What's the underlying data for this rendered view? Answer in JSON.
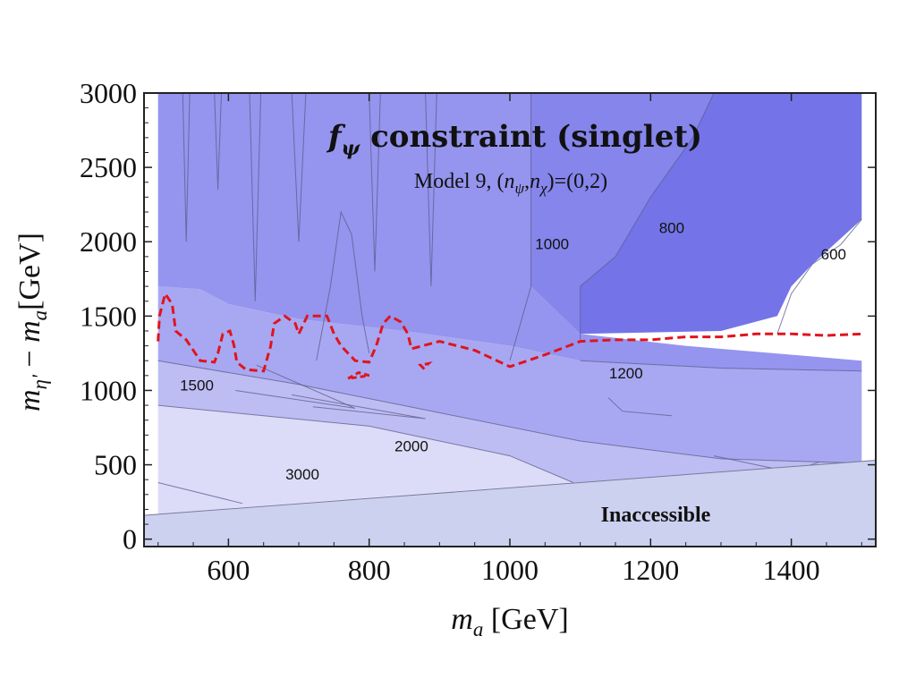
{
  "chart_data": {
    "type": "contour",
    "title": "f_ψ constraint (singlet)",
    "title_parts": {
      "main": "f",
      "sub": "ψ",
      "rest": " constraint (singlet)"
    },
    "subtitle": "Model 9, (n_ψ,n_χ)=(0,2)",
    "subtitle_parts": {
      "pre": "Model 9, (",
      "n1": "n",
      "s1": "ψ",
      "sep": ",",
      "n2": "n",
      "s2": "χ",
      "post": ")=(0,2)"
    },
    "xlabel": "m_a [GeV]",
    "xlabel_parts": {
      "m": "m",
      "sub": "a",
      "unit": " [GeV]"
    },
    "ylabel": "m_η' − m_a [GeV]",
    "ylabel_parts": {
      "m1": "m",
      "s1": "η'",
      "dash": " − ",
      "m2": "m",
      "s2": "a",
      "unit": "[GeV]"
    },
    "xlim": [
      480,
      1520
    ],
    "ylim": [
      -50,
      3000
    ],
    "x_ticks": [
      600,
      800,
      1000,
      1200,
      1400
    ],
    "y_ticks": [
      0,
      500,
      1000,
      1500,
      2000,
      2500,
      3000
    ],
    "x_tick_labels": [
      "600",
      "800",
      "1000",
      "1200",
      "1400"
    ],
    "y_tick_labels": [
      "0",
      "500",
      "1000",
      "1500",
      "2000",
      "2500",
      "3000"
    ],
    "contour_levels": [
      600,
      800,
      1000,
      1200,
      1500,
      2000,
      3000
    ],
    "contour_labels": [
      {
        "text": "600",
        "x": 1460,
        "y": 1880
      },
      {
        "text": "800",
        "x": 1230,
        "y": 2060
      },
      {
        "text": "1000",
        "x": 1060,
        "y": 1950
      },
      {
        "text": "1200",
        "x": 1165,
        "y": 1080
      },
      {
        "text": "1500",
        "x": 555,
        "y": 1000
      },
      {
        "text": "2000",
        "x": 860,
        "y": 590
      },
      {
        "text": "3000",
        "x": 705,
        "y": 400
      }
    ],
    "bands": [
      {
        "level": "3000+",
        "color": "#f4f4fd",
        "points": [
          [
            500,
            380
          ],
          [
            500,
            170
          ],
          [
            620,
            240
          ]
        ]
      },
      {
        "level": "2000-3000",
        "color": "#dcdcf8",
        "points": [
          [
            500,
            900
          ],
          [
            800,
            760
          ],
          [
            1000,
            560
          ],
          [
            1090,
            380
          ],
          [
            830,
            290
          ],
          [
            500,
            170
          ]
        ]
      },
      {
        "level": "1500-2000",
        "color": "#bdbdf3",
        "points": [
          [
            500,
            1200
          ],
          [
            700,
            1040
          ],
          [
            900,
            850
          ],
          [
            1100,
            660
          ],
          [
            1300,
            540
          ],
          [
            1500,
            510
          ],
          [
            1500,
            430
          ],
          [
            1090,
            380
          ],
          [
            1000,
            560
          ],
          [
            800,
            760
          ],
          [
            500,
            900
          ]
        ]
      },
      {
        "level": "1200-1500",
        "color": "#a8a8f2",
        "points": [
          [
            500,
            1700
          ],
          [
            560,
            1680
          ],
          [
            600,
            1580
          ],
          [
            700,
            1480
          ],
          [
            850,
            1400
          ],
          [
            1000,
            1300
          ],
          [
            1100,
            1200
          ],
          [
            1300,
            1150
          ],
          [
            1500,
            1130
          ],
          [
            1500,
            510
          ],
          [
            1300,
            540
          ],
          [
            1100,
            660
          ],
          [
            900,
            850
          ],
          [
            700,
            1040
          ],
          [
            500,
            1200
          ]
        ]
      },
      {
        "level": "1000-1200",
        "color": "#9595ef",
        "points": [
          [
            500,
            3000
          ],
          [
            1030,
            3000
          ],
          [
            1030,
            1700
          ],
          [
            1100,
            1380
          ],
          [
            1250,
            1300
          ],
          [
            1500,
            1200
          ],
          [
            1500,
            1130
          ],
          [
            1300,
            1150
          ],
          [
            1100,
            1200
          ],
          [
            1000,
            1300
          ],
          [
            850,
            1400
          ],
          [
            700,
            1480
          ],
          [
            600,
            1580
          ],
          [
            560,
            1680
          ],
          [
            500,
            1700
          ]
        ]
      },
      {
        "level": "800-1000",
        "color": "#8585ec",
        "points": [
          [
            1030,
            3000
          ],
          [
            1290,
            3000
          ],
          [
            1260,
            2700
          ],
          [
            1200,
            2300
          ],
          [
            1150,
            1900
          ],
          [
            1100,
            1700
          ],
          [
            1100,
            1380
          ],
          [
            1030,
            1700
          ]
        ]
      },
      {
        "level": "600-800",
        "color": "#7474e8",
        "points": [
          [
            1290,
            3000
          ],
          [
            1500,
            3000
          ],
          [
            1500,
            2150
          ],
          [
            1430,
            1850
          ],
          [
            1400,
            1700
          ],
          [
            1380,
            1500
          ],
          [
            1300,
            1400
          ],
          [
            1100,
            1380
          ],
          [
            1100,
            1700
          ],
          [
            1150,
            1900
          ],
          [
            1200,
            2300
          ],
          [
            1260,
            2700
          ]
        ]
      }
    ],
    "contour_lines": [
      {
        "level": 600,
        "points": [
          [
            1380,
            1380
          ],
          [
            1400,
            1650
          ],
          [
            1430,
            1850
          ],
          [
            1470,
            1980
          ],
          [
            1500,
            2150
          ]
        ]
      },
      {
        "level": 800,
        "points": [
          [
            1100,
            1340
          ],
          [
            1100,
            1700
          ],
          [
            1150,
            1900
          ],
          [
            1200,
            2300
          ],
          [
            1260,
            2700
          ],
          [
            1290,
            3000
          ]
        ]
      },
      {
        "level": 1000,
        "points": [
          [
            1030,
            3000
          ],
          [
            1030,
            1700
          ],
          [
            1000,
            1200
          ]
        ]
      },
      {
        "level": 1200,
        "points": [
          [
            1100,
            1200
          ],
          [
            1300,
            1150
          ],
          [
            1500,
            1130
          ]
        ]
      },
      {
        "level": 1500,
        "points": [
          [
            500,
            1200
          ],
          [
            700,
            1040
          ],
          [
            900,
            850
          ],
          [
            1100,
            660
          ],
          [
            1300,
            540
          ],
          [
            1500,
            510
          ]
        ]
      },
      {
        "level": 2000,
        "points": [
          [
            500,
            900
          ],
          [
            800,
            760
          ],
          [
            1000,
            560
          ],
          [
            1090,
            380
          ]
        ]
      },
      {
        "level": 3000,
        "points": [
          [
            500,
            380
          ],
          [
            620,
            240
          ]
        ]
      },
      {
        "level": "spike",
        "points": [
          [
            535,
            3000
          ],
          [
            540,
            2000
          ],
          [
            545,
            3000
          ]
        ]
      },
      {
        "level": "spike",
        "points": [
          [
            580,
            3000
          ],
          [
            585,
            2350
          ],
          [
            590,
            3000
          ]
        ]
      },
      {
        "level": "spike",
        "points": [
          [
            630,
            3000
          ],
          [
            638,
            1600
          ],
          [
            646,
            3000
          ]
        ]
      },
      {
        "level": "spike",
        "points": [
          [
            690,
            3000
          ],
          [
            700,
            2000
          ],
          [
            710,
            3000
          ]
        ]
      },
      {
        "level": "spike",
        "points": [
          [
            725,
            1200
          ],
          [
            745,
            1700
          ],
          [
            760,
            2200
          ],
          [
            775,
            2050
          ],
          [
            790,
            1500
          ],
          [
            800,
            1250
          ]
        ]
      },
      {
        "level": "spike",
        "points": [
          [
            800,
            3000
          ],
          [
            808,
            1800
          ],
          [
            816,
            3000
          ]
        ]
      },
      {
        "level": "spike",
        "points": [
          [
            880,
            3000
          ],
          [
            888,
            1700
          ],
          [
            896,
            3000
          ]
        ]
      },
      {
        "level": "finger",
        "points": [
          [
            640,
            1170
          ],
          [
            780,
            880
          ],
          [
            610,
            1000
          ]
        ]
      },
      {
        "level": "finger",
        "points": [
          [
            690,
            970
          ],
          [
            880,
            810
          ],
          [
            720,
            890
          ]
        ]
      },
      {
        "level": "finger",
        "points": [
          [
            1140,
            950
          ],
          [
            1160,
            860
          ],
          [
            1230,
            830
          ]
        ]
      },
      {
        "level": "finger",
        "points": [
          [
            1290,
            560
          ],
          [
            1400,
            450
          ],
          [
            1440,
            520
          ]
        ]
      }
    ],
    "exclusion_boundary": {
      "label": "dashed red boundary",
      "color": "#e0141e",
      "points": [
        [
          500,
          1330
        ],
        [
          502,
          1500
        ],
        [
          510,
          1650
        ],
        [
          520,
          1580
        ],
        [
          525,
          1400
        ],
        [
          540,
          1340
        ],
        [
          560,
          1200
        ],
        [
          580,
          1190
        ],
        [
          585,
          1250
        ],
        [
          592,
          1380
        ],
        [
          602,
          1400
        ],
        [
          608,
          1300
        ],
        [
          612,
          1190
        ],
        [
          625,
          1140
        ],
        [
          650,
          1130
        ],
        [
          660,
          1300
        ],
        [
          665,
          1450
        ],
        [
          680,
          1500
        ],
        [
          695,
          1450
        ],
        [
          700,
          1380
        ],
        [
          712,
          1500
        ],
        [
          740,
          1500
        ],
        [
          750,
          1380
        ],
        [
          760,
          1300
        ],
        [
          780,
          1200
        ],
        [
          800,
          1190
        ],
        [
          810,
          1300
        ],
        [
          820,
          1450
        ],
        [
          830,
          1500
        ],
        [
          845,
          1460
        ],
        [
          855,
          1380
        ],
        [
          860,
          1280
        ],
        [
          900,
          1330
        ],
        [
          950,
          1270
        ],
        [
          1000,
          1160
        ],
        [
          1050,
          1240
        ],
        [
          1100,
          1330
        ],
        [
          1150,
          1340
        ],
        [
          1200,
          1340
        ],
        [
          1250,
          1360
        ],
        [
          1300,
          1360
        ],
        [
          1350,
          1380
        ],
        [
          1400,
          1380
        ],
        [
          1450,
          1370
        ],
        [
          1500,
          1380
        ]
      ],
      "islands": [
        [
          [
            770,
            1080
          ],
          [
            785,
            1120
          ],
          [
            800,
            1100
          ]
        ],
        [
          [
            873,
            1170
          ],
          [
            877,
            1150
          ],
          [
            884,
            1180
          ]
        ]
      ]
    },
    "inaccessible_region": {
      "label": "Inaccessible",
      "color": "#ccd1f0",
      "points": [
        [
          480,
          -50
        ],
        [
          1520,
          -50
        ],
        [
          1520,
          530
        ],
        [
          480,
          160
        ]
      ]
    }
  }
}
